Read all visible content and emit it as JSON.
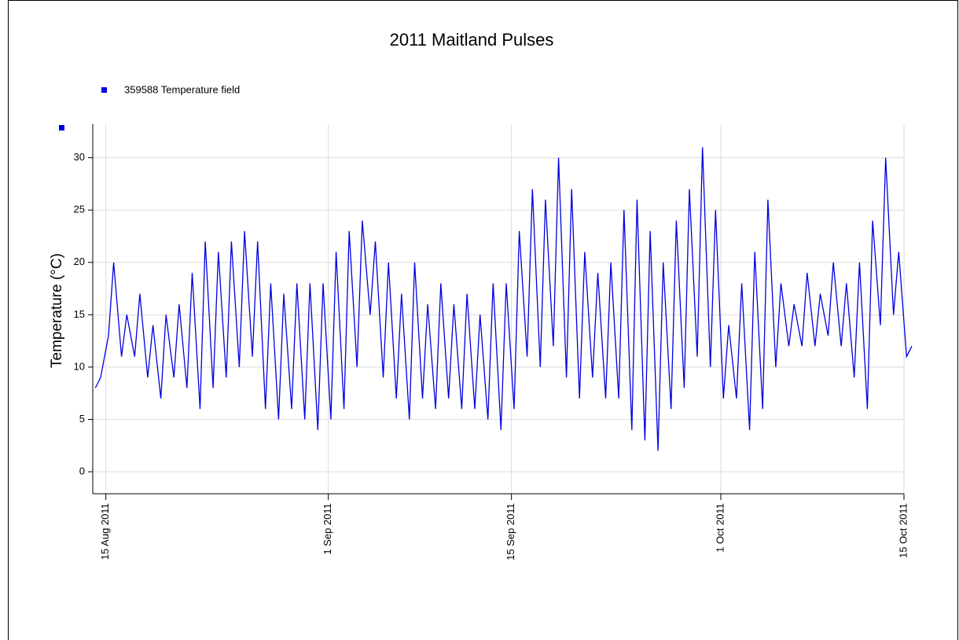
{
  "chart_data": {
    "type": "line",
    "title": "2011 Maitland Pulses",
    "y_label": "Temperature (°C)",
    "x": [
      "2011-08-14",
      "2011-08-15",
      "2011-08-16",
      "2011-08-17",
      "2011-08-18",
      "2011-08-19",
      "2011-08-20",
      "2011-08-21",
      "2011-08-22",
      "2011-08-23",
      "2011-08-24",
      "2011-08-25",
      "2011-08-26",
      "2011-08-27",
      "2011-08-28",
      "2011-08-29",
      "2011-08-30",
      "2011-08-31",
      "2011-09-01",
      "2011-09-02",
      "2011-09-03",
      "2011-09-04",
      "2011-09-05",
      "2011-09-06",
      "2011-09-07",
      "2011-09-08",
      "2011-09-09",
      "2011-09-10",
      "2011-09-11",
      "2011-09-12",
      "2011-09-13",
      "2011-09-14",
      "2011-09-15",
      "2011-09-16",
      "2011-09-17",
      "2011-09-18",
      "2011-09-19",
      "2011-09-20",
      "2011-09-21",
      "2011-09-22",
      "2011-09-23",
      "2011-09-24",
      "2011-09-25",
      "2011-09-26",
      "2011-09-27",
      "2011-09-28",
      "2011-09-29",
      "2011-09-30",
      "2011-10-01",
      "2011-10-02",
      "2011-10-03",
      "2011-10-04",
      "2011-10-05",
      "2011-10-06",
      "2011-10-07",
      "2011-10-08",
      "2011-10-09",
      "2011-10-10",
      "2011-10-11",
      "2011-10-12",
      "2011-10-13",
      "2011-10-14",
      "2011-10-15"
    ],
    "series": [
      {
        "name": "359588  Temperature field",
        "color": "#0000e0",
        "lows": [
          8,
          13,
          11,
          11,
          9,
          7,
          9,
          8,
          6,
          8,
          9,
          10,
          11,
          6,
          5,
          6,
          5,
          4,
          5,
          6,
          10,
          15,
          9,
          7,
          5,
          7,
          6,
          7,
          6,
          6,
          5,
          4,
          6,
          11,
          10,
          12,
          9,
          7,
          9,
          7,
          7,
          4,
          3,
          2,
          6,
          8,
          11,
          10,
          7,
          7,
          4,
          6,
          10,
          12,
          12,
          12,
          13,
          12,
          9,
          6,
          14,
          15,
          11
        ],
        "values": [
          9,
          20,
          15,
          17,
          14,
          15,
          16,
          19,
          22,
          21,
          22,
          23,
          22,
          18,
          17,
          18,
          18,
          18,
          21,
          23,
          24,
          22,
          20,
          17,
          20,
          16,
          18,
          16,
          17,
          15,
          18,
          18,
          23,
          27,
          26,
          30,
          27,
          21,
          19,
          20,
          25,
          26,
          23,
          20,
          24,
          27,
          31,
          25,
          14,
          18,
          21,
          26,
          18,
          16,
          19,
          17,
          20,
          18,
          20,
          24,
          30,
          21,
          12
        ]
      }
    ],
    "xlim": [
      "2011-08-14",
      "2011-10-15"
    ],
    "xticks": [
      {
        "value": "2011-08-15",
        "label": "15 Aug 2011"
      },
      {
        "value": "2011-09-01",
        "label": "1 Sep 2011"
      },
      {
        "value": "2011-09-15",
        "label": "15 Sep 2011"
      },
      {
        "value": "2011-10-01",
        "label": "1 Oct 2011"
      },
      {
        "value": "2011-10-15",
        "label": "15 Oct 2011"
      }
    ],
    "ylim": [
      -2.1,
      33.2
    ],
    "yticks": [
      0,
      5,
      10,
      15,
      20,
      25,
      30
    ],
    "grid": true
  }
}
